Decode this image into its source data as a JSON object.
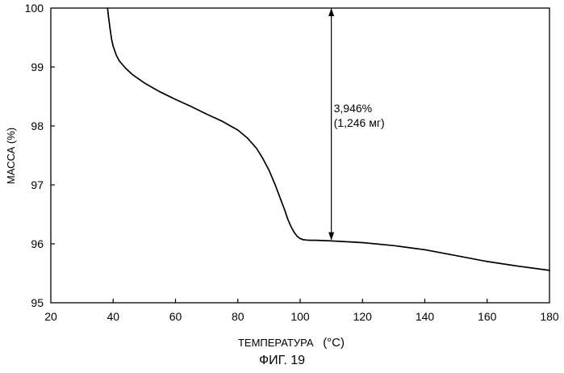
{
  "figure_caption": "ФИГ. 19",
  "chart_data": {
    "type": "line",
    "xlabel": "ТЕМПЕРАТУРА",
    "xunit": "(°C)",
    "ylabel": "МАССА (%)",
    "xlim": [
      20,
      180
    ],
    "ylim": [
      95,
      100
    ],
    "x_ticks": [
      "20",
      "40",
      "60",
      "80",
      "100",
      "120",
      "140",
      "160",
      "180"
    ],
    "y_ticks": [
      "95",
      "96",
      "97",
      "98",
      "99",
      "100"
    ],
    "grid": false,
    "series": [
      {
        "color": "#000000",
        "x": [
          38.2,
          38.5,
          39,
          39.5,
          40,
          41,
          42,
          44,
          46,
          50,
          55,
          60,
          65,
          70,
          75,
          80,
          83,
          86,
          88,
          90,
          92,
          94,
          95,
          96,
          97,
          98,
          99,
          100,
          101,
          102,
          103,
          105,
          110,
          120,
          130,
          140,
          150,
          160,
          170,
          180
        ],
        "y": [
          100.0,
          99.85,
          99.65,
          99.47,
          99.35,
          99.2,
          99.1,
          98.98,
          98.88,
          98.73,
          98.58,
          98.45,
          98.33,
          98.2,
          98.08,
          97.93,
          97.8,
          97.62,
          97.45,
          97.25,
          97.0,
          96.72,
          96.58,
          96.42,
          96.3,
          96.2,
          96.13,
          96.09,
          96.07,
          96.065,
          96.06,
          96.06,
          96.05,
          96.02,
          95.97,
          95.9,
          95.8,
          95.7,
          95.62,
          95.55
        ]
      }
    ],
    "annotations": [
      {
        "type": "double-arrow",
        "x": 110,
        "y_from": 96.06,
        "y_to": 100,
        "label_line1": "3,946%",
        "label_line2": "(1,246 мг)"
      }
    ]
  }
}
